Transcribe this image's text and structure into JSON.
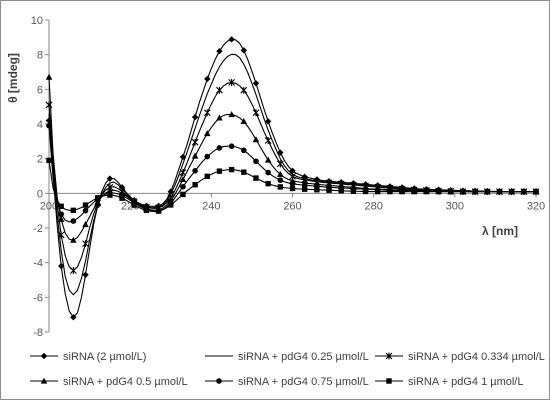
{
  "chart_data": {
    "type": "line",
    "xlabel": "λ [nm]",
    "ylabel": "θ  [mdeg]",
    "xlim": [
      200,
      320
    ],
    "ylim": [
      -8,
      10
    ],
    "x_ticks": [
      200,
      220,
      240,
      260,
      280,
      300,
      320
    ],
    "y_ticks": [
      -8,
      -6,
      -4,
      -2,
      0,
      2,
      4,
      6,
      8,
      10
    ],
    "grid": {
      "x": false,
      "y": false
    },
    "legend_position": "bottom",
    "x": [
      200,
      201,
      202,
      203,
      204,
      205,
      206,
      207,
      208,
      209,
      210,
      211,
      212,
      213,
      214,
      215,
      216,
      217,
      218,
      219,
      220,
      221,
      222,
      223,
      224,
      225,
      226,
      227,
      228,
      229,
      230,
      231,
      232,
      233,
      234,
      235,
      236,
      237,
      238,
      239,
      240,
      241,
      242,
      243,
      244,
      245,
      246,
      247,
      248,
      249,
      250,
      251,
      252,
      253,
      254,
      255,
      256,
      257,
      258,
      259,
      260,
      261,
      262,
      263,
      264,
      265,
      266,
      267,
      268,
      269,
      270,
      271,
      272,
      273,
      274,
      275,
      276,
      277,
      278,
      279,
      280,
      281,
      282,
      283,
      284,
      285,
      286,
      287,
      288,
      289,
      290,
      291,
      292,
      293,
      294,
      295,
      296,
      297,
      298,
      299,
      300,
      301,
      302,
      303,
      304,
      305,
      306,
      307,
      308,
      309,
      310,
      311,
      312,
      313,
      314,
      315,
      316,
      317,
      318,
      319,
      320
    ],
    "series": [
      {
        "name": "siRNA (2 µmol/L)",
        "marker": "diamond",
        "values": [
          4.2,
          1.0,
          -1.8,
          -4.2,
          -5.8,
          -6.8,
          -7.15,
          -6.9,
          -6.0,
          -4.7,
          -3.2,
          -1.8,
          -0.7,
          0.1,
          0.6,
          0.85,
          0.85,
          0.65,
          0.35,
          0.05,
          -0.2,
          -0.4,
          -0.55,
          -0.65,
          -0.72,
          -0.75,
          -0.75,
          -0.72,
          -0.6,
          -0.35,
          0.1,
          0.7,
          1.4,
          2.1,
          2.8,
          3.6,
          4.4,
          5.2,
          5.9,
          6.6,
          7.2,
          7.75,
          8.2,
          8.55,
          8.78,
          8.88,
          8.85,
          8.65,
          8.25,
          7.7,
          7.05,
          6.35,
          5.6,
          4.85,
          4.15,
          3.5,
          2.9,
          2.35,
          1.9,
          1.55,
          1.3,
          1.15,
          1.05,
          0.95,
          0.9,
          0.85,
          0.8,
          0.75,
          0.72,
          0.7,
          0.68,
          0.66,
          0.64,
          0.62,
          0.6,
          0.58,
          0.56,
          0.54,
          0.52,
          0.5,
          0.48,
          0.46,
          0.44,
          0.42,
          0.4,
          0.38,
          0.36,
          0.34,
          0.32,
          0.3,
          0.28,
          0.26,
          0.25,
          0.24,
          0.23,
          0.22,
          0.21,
          0.2,
          0.19,
          0.18,
          0.17,
          0.16,
          0.15,
          0.15,
          0.14,
          0.14,
          0.13,
          0.13,
          0.12,
          0.12,
          0.11,
          0.11,
          0.1,
          0.1,
          0.1,
          0.1,
          0.1,
          0.1,
          0.1,
          0.1,
          0.1
        ]
      },
      {
        "name": "siRNA + pdG4 0.25 µmol/L",
        "marker": "none",
        "values": [
          4.6,
          1.6,
          -1.2,
          -3.3,
          -4.8,
          -5.6,
          -5.85,
          -5.6,
          -4.9,
          -3.9,
          -2.7,
          -1.6,
          -0.7,
          -0.05,
          0.35,
          0.6,
          0.65,
          0.5,
          0.25,
          0.0,
          -0.25,
          -0.45,
          -0.6,
          -0.7,
          -0.78,
          -0.82,
          -0.83,
          -0.8,
          -0.68,
          -0.45,
          -0.05,
          0.45,
          1.05,
          1.7,
          2.35,
          3.05,
          3.75,
          4.45,
          5.1,
          5.75,
          6.3,
          6.85,
          7.3,
          7.65,
          7.9,
          8.02,
          8.0,
          7.82,
          7.45,
          6.95,
          6.35,
          5.7,
          5.0,
          4.3,
          3.65,
          3.05,
          2.5,
          2.0,
          1.6,
          1.3,
          1.1,
          0.98,
          0.9,
          0.85,
          0.8,
          0.76,
          0.72,
          0.69,
          0.66,
          0.64,
          0.62,
          0.6,
          0.58,
          0.56,
          0.54,
          0.52,
          0.5,
          0.48,
          0.46,
          0.44,
          0.42,
          0.4,
          0.38,
          0.36,
          0.34,
          0.32,
          0.3,
          0.28,
          0.26,
          0.25,
          0.24,
          0.23,
          0.22,
          0.21,
          0.2,
          0.19,
          0.18,
          0.17,
          0.16,
          0.15,
          0.15,
          0.14,
          0.14,
          0.13,
          0.13,
          0.12,
          0.12,
          0.11,
          0.11,
          0.1,
          0.1,
          0.1,
          0.1,
          0.1,
          0.1,
          0.1,
          0.1,
          0.1,
          0.1,
          0.1,
          0.1
        ]
      },
      {
        "name": "siRNA + pdG4 0.334 µmol/L",
        "marker": "star",
        "values": [
          5.1,
          2.0,
          -0.6,
          -2.4,
          -3.6,
          -4.25,
          -4.45,
          -4.25,
          -3.7,
          -2.9,
          -2.0,
          -1.2,
          -0.55,
          -0.1,
          0.2,
          0.35,
          0.38,
          0.28,
          0.1,
          -0.1,
          -0.3,
          -0.48,
          -0.62,
          -0.72,
          -0.8,
          -0.85,
          -0.87,
          -0.84,
          -0.74,
          -0.55,
          -0.25,
          0.15,
          0.65,
          1.2,
          1.75,
          2.35,
          2.95,
          3.55,
          4.1,
          4.65,
          5.15,
          5.6,
          5.95,
          6.2,
          6.35,
          6.4,
          6.35,
          6.2,
          5.95,
          5.6,
          5.15,
          4.65,
          4.1,
          3.55,
          3.05,
          2.55,
          2.1,
          1.7,
          1.38,
          1.15,
          0.98,
          0.88,
          0.82,
          0.78,
          0.74,
          0.7,
          0.67,
          0.64,
          0.62,
          0.6,
          0.58,
          0.56,
          0.54,
          0.52,
          0.5,
          0.48,
          0.46,
          0.44,
          0.42,
          0.4,
          0.38,
          0.36,
          0.34,
          0.32,
          0.3,
          0.28,
          0.26,
          0.24,
          0.22,
          0.21,
          0.2,
          0.19,
          0.18,
          0.17,
          0.16,
          0.15,
          0.14,
          0.13,
          0.12,
          0.12,
          0.11,
          0.11,
          0.1,
          0.1,
          0.1,
          0.1,
          0.1,
          0.1,
          0.1,
          0.1,
          0.1,
          0.1,
          0.1,
          0.1,
          0.1,
          0.1,
          0.1,
          0.1,
          0.1,
          0.1,
          0.1
        ]
      },
      {
        "name": "siRNA + pdG4 0.5 µmol/L",
        "marker": "triangle",
        "values": [
          6.7,
          2.3,
          -0.2,
          -1.5,
          -2.3,
          -2.65,
          -2.7,
          -2.55,
          -2.2,
          -1.8,
          -1.35,
          -0.9,
          -0.5,
          -0.2,
          0.02,
          0.15,
          0.18,
          0.12,
          0.0,
          -0.15,
          -0.32,
          -0.5,
          -0.65,
          -0.78,
          -0.88,
          -0.95,
          -0.98,
          -0.95,
          -0.85,
          -0.68,
          -0.42,
          -0.08,
          0.35,
          0.8,
          1.25,
          1.7,
          2.15,
          2.6,
          3.05,
          3.45,
          3.8,
          4.1,
          4.35,
          4.5,
          4.55,
          4.55,
          4.48,
          4.35,
          4.15,
          3.85,
          3.5,
          3.1,
          2.7,
          2.3,
          1.92,
          1.6,
          1.32,
          1.1,
          0.92,
          0.8,
          0.72,
          0.68,
          0.64,
          0.6,
          0.57,
          0.55,
          0.52,
          0.5,
          0.48,
          0.46,
          0.44,
          0.42,
          0.4,
          0.38,
          0.36,
          0.34,
          0.32,
          0.3,
          0.28,
          0.26,
          0.25,
          0.24,
          0.23,
          0.22,
          0.21,
          0.2,
          0.19,
          0.18,
          0.17,
          0.16,
          0.15,
          0.14,
          0.13,
          0.12,
          0.12,
          0.11,
          0.11,
          0.1,
          0.1,
          0.1,
          0.1,
          0.1,
          0.1,
          0.1,
          0.1,
          0.1,
          0.1,
          0.1,
          0.1,
          0.1,
          0.1,
          0.1,
          0.1,
          0.1,
          0.1,
          0.1,
          0.1,
          0.1,
          0.1,
          0.1,
          0.1
        ]
      },
      {
        "name": "siRNA + pdG4 0.75 µmol/L",
        "marker": "circle",
        "values": [
          3.9,
          0.9,
          -0.5,
          -1.2,
          -1.55,
          -1.65,
          -1.6,
          -1.45,
          -1.25,
          -1.0,
          -0.75,
          -0.52,
          -0.32,
          -0.15,
          -0.04,
          0.02,
          0.02,
          -0.03,
          -0.12,
          -0.25,
          -0.4,
          -0.55,
          -0.7,
          -0.82,
          -0.92,
          -1.0,
          -1.04,
          -1.02,
          -0.93,
          -0.78,
          -0.55,
          -0.27,
          0.05,
          0.38,
          0.7,
          1.0,
          1.3,
          1.6,
          1.88,
          2.12,
          2.32,
          2.5,
          2.62,
          2.7,
          2.72,
          2.72,
          2.68,
          2.6,
          2.48,
          2.3,
          2.08,
          1.85,
          1.62,
          1.4,
          1.2,
          1.02,
          0.88,
          0.76,
          0.67,
          0.6,
          0.55,
          0.52,
          0.49,
          0.47,
          0.45,
          0.43,
          0.41,
          0.39,
          0.37,
          0.35,
          0.34,
          0.32,
          0.31,
          0.3,
          0.28,
          0.27,
          0.26,
          0.25,
          0.24,
          0.23,
          0.22,
          0.21,
          0.2,
          0.19,
          0.18,
          0.17,
          0.16,
          0.15,
          0.14,
          0.13,
          0.12,
          0.12,
          0.11,
          0.11,
          0.1,
          0.1,
          0.1,
          0.1,
          0.1,
          0.1,
          0.1,
          0.1,
          0.1,
          0.1,
          0.1,
          0.1,
          0.1,
          0.1,
          0.1,
          0.1,
          0.1,
          0.1,
          0.1,
          0.1,
          0.1,
          0.1,
          0.1,
          0.1,
          0.1,
          0.1,
          0.1
        ]
      },
      {
        "name": "siRNA + pdG4 1 µmol/L",
        "marker": "square",
        "values": [
          1.9,
          0.3,
          -0.4,
          -0.75,
          -0.92,
          -0.98,
          -0.98,
          -0.92,
          -0.82,
          -0.68,
          -0.52,
          -0.38,
          -0.26,
          -0.17,
          -0.12,
          -0.1,
          -0.12,
          -0.18,
          -0.28,
          -0.4,
          -0.54,
          -0.68,
          -0.8,
          -0.9,
          -0.98,
          -1.03,
          -1.05,
          -1.02,
          -0.95,
          -0.83,
          -0.67,
          -0.48,
          -0.27,
          -0.06,
          0.14,
          0.32,
          0.5,
          0.67,
          0.83,
          0.98,
          1.1,
          1.2,
          1.28,
          1.33,
          1.36,
          1.37,
          1.35,
          1.3,
          1.22,
          1.12,
          1.0,
          0.88,
          0.76,
          0.65,
          0.56,
          0.48,
          0.42,
          0.37,
          0.33,
          0.3,
          0.28,
          0.26,
          0.25,
          0.24,
          0.23,
          0.22,
          0.21,
          0.2,
          0.19,
          0.18,
          0.17,
          0.16,
          0.15,
          0.14,
          0.13,
          0.12,
          0.12,
          0.11,
          0.11,
          0.1,
          0.1,
          0.1,
          0.1,
          0.1,
          0.1,
          0.1,
          0.1,
          0.1,
          0.1,
          0.1,
          0.1,
          0.1,
          0.1,
          0.1,
          0.1,
          0.1,
          0.1,
          0.1,
          0.1,
          0.1,
          0.1,
          0.1,
          0.1,
          0.1,
          0.1,
          0.1,
          0.1,
          0.1,
          0.1,
          0.1,
          0.1,
          0.1,
          0.1,
          0.1,
          0.1,
          0.1,
          0.1,
          0.1,
          0.1,
          0.1,
          0.1
        ]
      }
    ]
  }
}
